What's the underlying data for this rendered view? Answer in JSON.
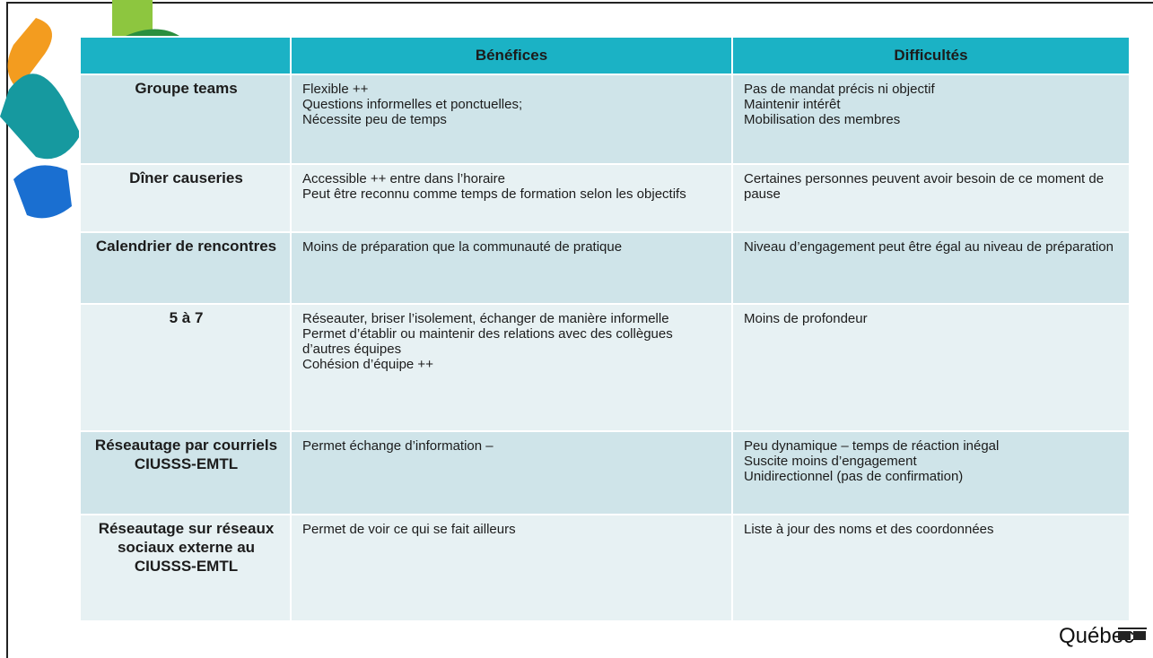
{
  "table": {
    "headers": [
      "Bénéfices",
      "Difficultés"
    ],
    "rows": [
      {
        "label": "Groupe teams",
        "benefits": [
          "Flexible ++",
          "Questions informelles et ponctuelles;",
          "Nécessite peu de temps"
        ],
        "difficulties": [
          "Pas de mandat précis ni objectif",
          "Maintenir intérêt",
          "Mobilisation des membres"
        ]
      },
      {
        "label": "Dîner causeries",
        "benefits": [
          "Accessible ++ entre dans l’horaire",
          "Peut être reconnu comme temps de formation selon les objectifs"
        ],
        "difficulties": [
          "Certaines personnes peuvent avoir besoin de ce moment de pause"
        ]
      },
      {
        "label": "Calendrier de rencontres",
        "benefits": [
          "Moins de préparation que la communauté de pratique"
        ],
        "difficulties": [
          "Niveau d’engagement peut être égal au niveau de préparation"
        ]
      },
      {
        "label": "5 à 7",
        "benefits": [
          "Réseauter, briser l’isolement, échanger de manière informelle",
          "Permet d’établir ou maintenir des relations avec des collègues d’autres équipes",
          "Cohésion d’équipe ++"
        ],
        "difficulties": [
          "Moins de profondeur"
        ]
      },
      {
        "label": "Réseautage par courriels CIUSSS-EMTL",
        "benefits": [
          "Permet échange d’information –"
        ],
        "difficulties": [
          "Peu dynamique – temps de réaction inégal",
          "Suscite moins d’engagement",
          "Unidirectionnel (pas de confirmation)"
        ]
      },
      {
        "label": "Réseautage sur réseaux sociaux externe au CIUSSS-EMTL",
        "benefits": [
          "Permet de voir ce qui se fait ailleurs"
        ],
        "difficulties": [
          "Liste à jour des noms et des coordonnées"
        ]
      }
    ]
  },
  "footer": {
    "logo": "Québec"
  }
}
